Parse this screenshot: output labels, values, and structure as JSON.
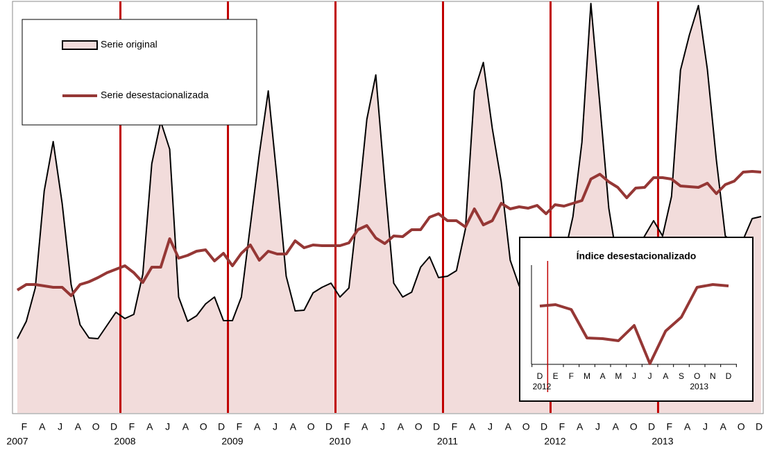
{
  "chart_data": [
    {
      "type": "line",
      "categories": [
        null,
        "F",
        null,
        "A",
        null,
        "J",
        null,
        "A",
        null,
        "O",
        null,
        "D",
        null,
        "F",
        null,
        "A",
        null,
        "J",
        null,
        "A",
        null,
        "O",
        null,
        "D",
        null,
        "F",
        null,
        "A",
        null,
        "J",
        null,
        "A",
        null,
        "O",
        null,
        "D",
        null,
        "F",
        null,
        "A",
        null,
        "J",
        null,
        "A",
        null,
        "O",
        null,
        "D",
        null,
        "F",
        null,
        "A",
        null,
        "J",
        null,
        "A",
        null,
        "O",
        null,
        "D",
        null,
        "F",
        null,
        "A",
        null,
        "J",
        null,
        "A",
        null,
        "O",
        null,
        "D",
        null,
        "F",
        null,
        "A",
        null,
        "J",
        null,
        "A",
        null,
        "O",
        null,
        "D"
      ],
      "years": [
        "2007",
        null,
        null,
        null,
        null,
        null,
        null,
        null,
        null,
        null,
        null,
        null,
        "2008",
        null,
        null,
        null,
        null,
        null,
        null,
        null,
        null,
        null,
        null,
        null,
        "2009",
        null,
        null,
        null,
        null,
        null,
        null,
        null,
        null,
        null,
        null,
        null,
        "2010",
        null,
        null,
        null,
        null,
        null,
        null,
        null,
        null,
        null,
        null,
        null,
        "2011",
        null,
        null,
        null,
        null,
        null,
        null,
        null,
        null,
        null,
        null,
        null,
        "2012",
        null,
        null,
        null,
        null,
        null,
        null,
        null,
        null,
        null,
        null,
        null,
        "2013",
        null,
        null,
        null,
        null,
        null,
        null,
        null,
        null,
        null,
        null,
        null
      ],
      "series": [
        {
          "name": "Serie original",
          "color": "#000000",
          "fill": "#f2dcdb",
          "values": [
            107,
            132,
            180,
            320,
            391,
            302,
            185,
            127,
            108,
            107,
            126,
            145,
            136,
            142,
            200,
            359,
            420,
            380,
            167,
            132,
            140,
            157,
            167,
            133,
            133,
            167,
            270,
            373,
            464,
            335,
            197,
            147,
            148,
            173,
            181,
            187,
            167,
            180,
            295,
            423,
            487,
            333,
            187,
            167,
            174,
            210,
            225,
            195,
            197,
            205,
            265,
            464,
            505,
            410,
            333,
            220,
            183,
            175,
            195,
            205,
            215,
            225,
            283,
            390,
            590,
            445,
            295,
            215,
            205,
            235,
            255,
            277,
            255,
            312,
            494,
            545,
            587,
            495,
            365,
            255,
            245,
            250,
            280,
            283
          ]
        },
        {
          "name": "Serie desestacionalizada",
          "color": "#953735",
          "values": [
            177,
            185,
            185,
            183,
            181,
            181,
            169,
            185,
            189,
            195,
            202,
            207,
            212,
            202,
            188,
            210,
            210,
            251,
            223,
            227,
            233,
            235,
            219,
            230,
            212,
            230,
            242,
            220,
            233,
            229,
            229,
            248,
            238,
            242,
            241,
            241,
            241,
            245,
            264,
            270,
            252,
            244,
            255,
            254,
            264,
            264,
            282,
            287,
            277,
            277,
            268,
            294,
            271,
            277,
            302,
            294,
            297,
            295,
            299,
            287,
            300,
            298,
            302,
            306,
            337,
            344,
            333,
            325,
            310,
            324,
            325,
            339,
            339,
            337,
            327,
            326,
            325,
            331,
            316,
            329,
            334,
            347,
            348,
            347
          ]
        }
      ],
      "ylim": [
        0,
        587
      ],
      "legend": "upper left",
      "separator_color": "#c00000"
    },
    {
      "type": "line",
      "title": "Índice desestacionalizado",
      "categories": [
        "D",
        "E",
        "F",
        "M",
        "A",
        "M",
        "J",
        "J",
        "A",
        "S",
        "O",
        "N",
        "D"
      ],
      "years": [
        "2012",
        null,
        null,
        null,
        null,
        null,
        null,
        null,
        null,
        null,
        "2013",
        null,
        null
      ],
      "values": [
        84,
        86,
        79,
        38,
        37,
        34,
        56,
        1,
        48,
        68,
        111,
        115,
        113
      ],
      "color": "#953735",
      "ylim": [
        0,
        143
      ]
    }
  ]
}
